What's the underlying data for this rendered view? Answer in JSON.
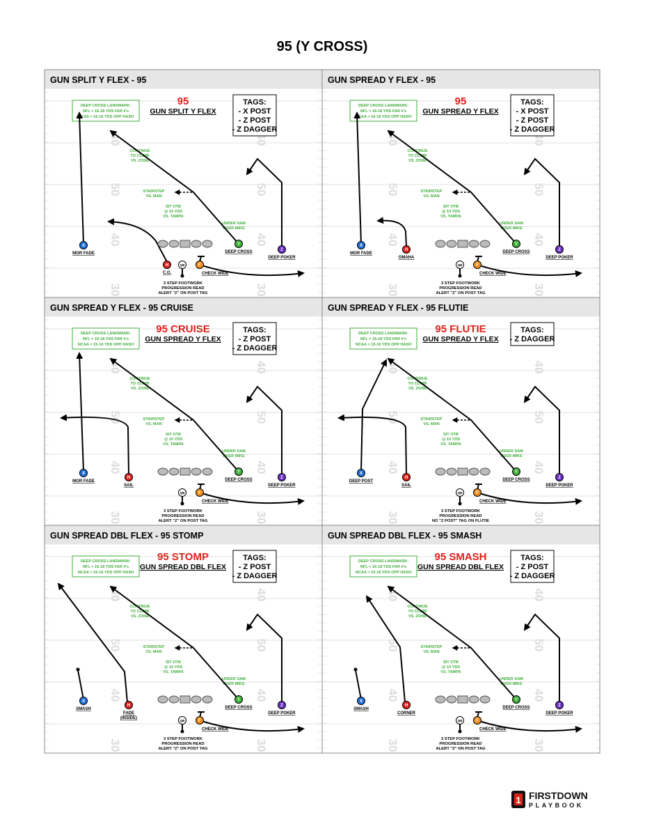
{
  "title": "95 (Y CROSS)",
  "landmark": [
    "DEEP CROSS LANDMARK:",
    "NFL = 16-18 YDS FAR #'s",
    "NCAA = 15-16 YDS OPP HASH"
  ],
  "route_notes": [
    [
      "CONTINUE",
      "TO CLIMB",
      "VS. ZONE"
    ],
    [
      "STAIRSTEP",
      "VS. MAN"
    ],
    [
      "SIT OTB",
      "@ 10 YDS",
      "VS. TAMPA"
    ],
    [
      "UNDER SAM",
      "OVER MIKE"
    ]
  ],
  "yard_numbers": [
    "40",
    "50",
    "40",
    "30"
  ],
  "tags_title": "TAGS:",
  "check_wide": "CHECK WIDE",
  "plays": [
    {
      "header": "GUN SPLIT Y FLEX - 95",
      "name": "95",
      "formation": "GUN SPLIT Y FLEX",
      "tags": [
        "- X POST",
        "- Z POST",
        "- Z DAGGER"
      ],
      "players": [
        {
          "letter": "X",
          "label": [
            "MOR FADE"
          ]
        },
        {
          "letter": "H",
          "label": [
            "C.O."
          ]
        },
        {
          "letter": "Y",
          "label": [
            "DEEP CROSS"
          ]
        },
        {
          "letter": "Z",
          "label": [
            "DEEP POKER"
          ]
        },
        {
          "letter": "QB",
          "label": []
        },
        {
          "letter": "F",
          "label": []
        }
      ],
      "notes": [
        "3 STEP FOOTWORK",
        "PROGRESSION READ",
        "ALERT \"Z\" ON POST TAG"
      ]
    },
    {
      "header": "GUN SPREAD Y FLEX - 95",
      "name": "95",
      "formation": "GUN SPREAD Y FLEX",
      "tags": [
        "- X POST",
        "- Z POST",
        "- Z DAGGER"
      ],
      "players": [
        {
          "letter": "X",
          "label": [
            "MOR FADE"
          ]
        },
        {
          "letter": "H",
          "label": [
            "OMAHA"
          ]
        },
        {
          "letter": "Y",
          "label": [
            "DEEP CROSS"
          ]
        },
        {
          "letter": "Z",
          "label": [
            "DEEP POKER"
          ]
        },
        {
          "letter": "QB",
          "label": []
        },
        {
          "letter": "F",
          "label": []
        }
      ],
      "notes": [
        "3 STEP FOOTWORK",
        "PROGRESSION READ",
        "ALERT \"Z\" ON POST TAG"
      ]
    },
    {
      "header": "GUN SPREAD Y FLEX - 95 CRUISE",
      "name": "95 CRUISE",
      "formation": "GUN SPREAD Y FLEX",
      "tags": [
        "- Z POST",
        "- Z DAGGER"
      ],
      "players": [
        {
          "letter": "X",
          "label": [
            "MOR FADE"
          ]
        },
        {
          "letter": "H",
          "label": [
            "SAIL"
          ]
        },
        {
          "letter": "Y",
          "label": [
            "DEEP CROSS"
          ]
        },
        {
          "letter": "Z",
          "label": [
            "DEEP POKER"
          ]
        },
        {
          "letter": "QB",
          "label": []
        },
        {
          "letter": "F",
          "label": []
        }
      ],
      "notes": [
        "3 STEP FOOTWORK",
        "PROGRESSION READ",
        "ALERT \"Z\" ON POST TAG"
      ]
    },
    {
      "header": "GUN SPREAD Y FLEX - 95 FLUTIE",
      "name": "95 FLUTIE",
      "formation": "GUN SPREAD Y FLEX",
      "tags": [
        "- Z DAGGER"
      ],
      "players": [
        {
          "letter": "X",
          "label": [
            "DEEP POST"
          ]
        },
        {
          "letter": "H",
          "label": [
            "SAIL"
          ]
        },
        {
          "letter": "Y",
          "label": [
            "DEEP CROSS"
          ]
        },
        {
          "letter": "Z",
          "label": [
            "DEEP POKER"
          ]
        },
        {
          "letter": "QB",
          "label": []
        },
        {
          "letter": "F",
          "label": []
        }
      ],
      "notes": [
        "3 STEP FOOTWORK",
        "PROGRESSION READ",
        "NO \"Z POST\" TAG ON FLUTIE"
      ]
    },
    {
      "header": "GUN SPREAD DBL FLEX - 95 STOMP",
      "name": "95 STOMP",
      "formation": "GUN SPREAD DBL FLEX",
      "tags": [
        "- Z POST",
        "- Z DAGGER"
      ],
      "players": [
        {
          "letter": "X",
          "label": [
            "SMASH"
          ]
        },
        {
          "letter": "H",
          "label": [
            "FADE",
            "(INSIDE)"
          ]
        },
        {
          "letter": "Y",
          "label": [
            "DEEP CROSS"
          ]
        },
        {
          "letter": "Z",
          "label": [
            "DEEP POKER"
          ]
        },
        {
          "letter": "QB",
          "label": []
        },
        {
          "letter": "F",
          "label": []
        }
      ],
      "notes": [
        "3 STEP FOOTWORK",
        "PROGRESSION READ",
        "ALERT \"Z\" ON POST TAG"
      ]
    },
    {
      "header": "GUN SPREAD DBL FLEX - 95 SMASH",
      "name": "95 SMASH",
      "formation": "GUN SPREAD DBL FLEX",
      "tags": [
        "- Z POST",
        "- Z DAGGER"
      ],
      "players": [
        {
          "letter": "X",
          "label": [
            "SMASH"
          ]
        },
        {
          "letter": "H",
          "label": [
            "CORNER"
          ]
        },
        {
          "letter": "Y",
          "label": [
            "DEEP CROSS"
          ]
        },
        {
          "letter": "Z",
          "label": [
            "DEEP POKER"
          ]
        },
        {
          "letter": "QB",
          "label": []
        },
        {
          "letter": "F",
          "label": []
        }
      ],
      "notes": [
        "3 STEP FOOTWORK",
        "PROGRESSION READ",
        "ALERT \"Z\" ON POST TAG"
      ]
    }
  ],
  "logo": {
    "badge": "1",
    "line1": "FIRSTDOWN",
    "line2": "PLAYBOOK"
  }
}
